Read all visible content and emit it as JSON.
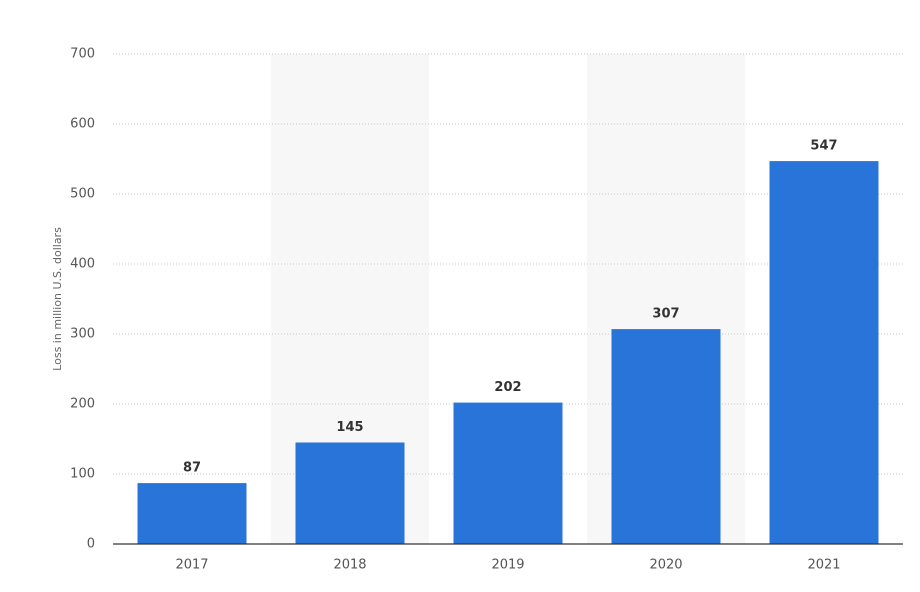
{
  "chart_data": {
    "type": "bar",
    "y_label": "Loss in million U.S. dollars",
    "categories": [
      "2017",
      "2018",
      "2019",
      "2020",
      "2021"
    ],
    "values": [
      87,
      145,
      202,
      307,
      547
    ],
    "color": "#2874d9",
    "ylim": [
      0,
      700
    ],
    "yticks": [
      0,
      100,
      200,
      300,
      400,
      500,
      600,
      700
    ],
    "grid": true
  }
}
